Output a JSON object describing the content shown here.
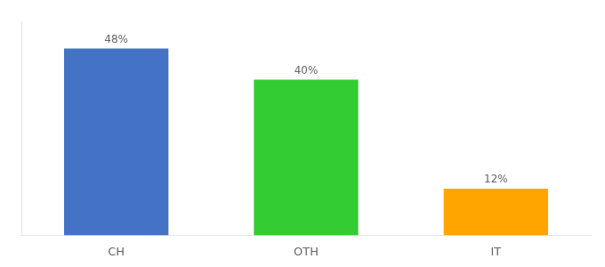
{
  "chart_data": {
    "type": "bar",
    "categories": [
      "CH",
      "OTH",
      "IT"
    ],
    "values": [
      48,
      40,
      12
    ],
    "value_labels": [
      "48%",
      "40%",
      "12%"
    ],
    "colors": [
      "#4472C4",
      "#33CC33",
      "#FFA500"
    ],
    "ylim": [
      0,
      55
    ],
    "grid": false,
    "data_labels": true,
    "tick_labels": "x"
  }
}
